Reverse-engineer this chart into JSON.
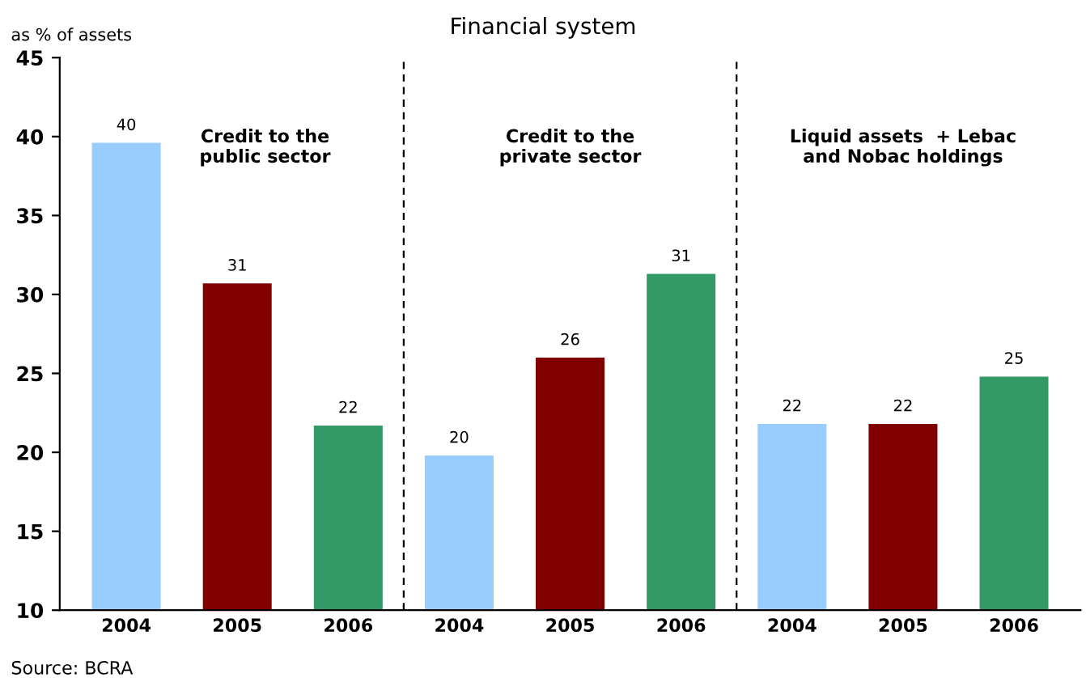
{
  "chart_data": {
    "type": "bar",
    "title": "Financial system",
    "ylabel": "as % of assets",
    "categories": [
      "2004",
      "2005",
      "2006",
      "2004",
      "2005",
      "2006",
      "2004",
      "2005",
      "2006"
    ],
    "values": [
      39.6,
      30.7,
      21.7,
      19.8,
      26.0,
      31.3,
      21.8,
      21.8,
      24.8
    ],
    "value_labels": [
      "40",
      "31",
      "22",
      "20",
      "26",
      "31",
      "22",
      "22",
      "25"
    ],
    "colors": [
      "#99ccff",
      "#800000",
      "#339966",
      "#99ccff",
      "#800000",
      "#339966",
      "#99ccff",
      "#800000",
      "#339966"
    ],
    "ylim": [
      10,
      45
    ],
    "yticks": [
      10,
      15,
      20,
      25,
      30,
      35,
      40,
      45
    ],
    "grid": false,
    "annotations": [
      "Credit to the\npublic sector",
      "Credit to the\nprivate sector",
      "Liquid assets  + Lebac\nand Nobac holdings",
      "Source: BCRA"
    ]
  }
}
